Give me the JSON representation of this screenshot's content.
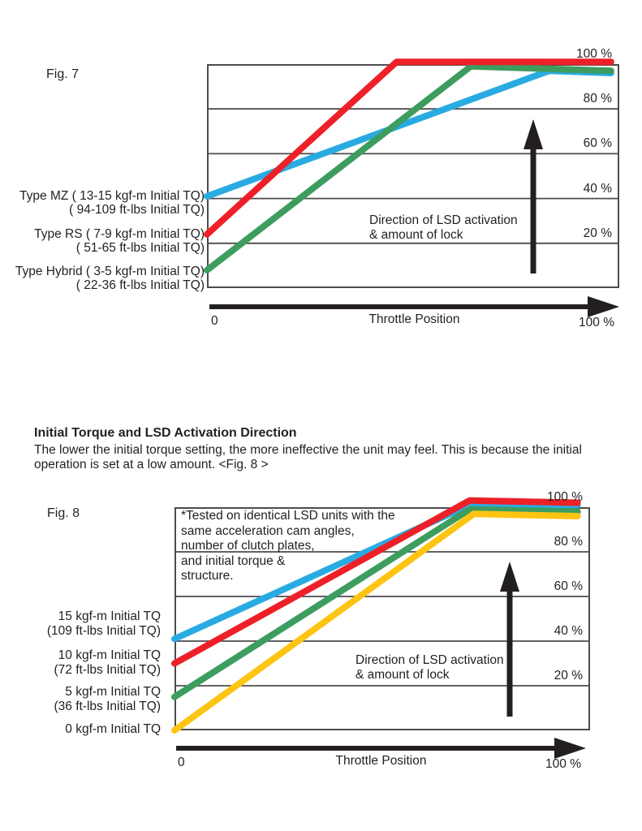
{
  "page": {
    "background": "#ffffff",
    "text_color": "#231f20",
    "frame_color": "#4c4c4e",
    "arrow_color": "#231f20"
  },
  "section": {
    "heading": "Initial Torque and LSD Activation Direction",
    "body": [
      "The lower the initial torque setting, the more ineffective the unit may feel. This is because the initial",
      "operation is set at a low amount. <Fig. 8 >"
    ]
  },
  "chart_data": [
    {
      "id": "fig7",
      "type": "line",
      "title": "Fig. 7",
      "xlabel": "Throttle Position",
      "x_min_label": "0",
      "x_max_label": "100 %",
      "xlim": [
        0,
        100
      ],
      "ylim": [
        0,
        100
      ],
      "y_ticks": [
        20,
        40,
        60,
        80,
        100
      ],
      "y_tick_suffix": " %",
      "grid": true,
      "legend_position": "left",
      "annotation": [
        "Direction of LSD activation",
        "& amount of lock"
      ],
      "series": [
        {
          "name": [
            "Type MZ ( 13-15 kgf-m Initial TQ)",
            "( 94-109 ft-lbs Initial TQ)"
          ],
          "color": "#29abe2",
          "points": [
            [
              0,
              41
            ],
            [
              83,
              97
            ],
            [
              98,
              96
            ]
          ]
        },
        {
          "name": [
            "Type RS ( 7-9 kgf-m Initial TQ)",
            "( 51-65 ft-lbs Initial TQ)"
          ],
          "color": "#ed2028",
          "points": [
            [
              0,
              24
            ],
            [
              46,
              101
            ],
            [
              98,
              101
            ]
          ]
        },
        {
          "name": [
            "Type Hybrid ( 3-5 kgf-m Initial TQ)",
            "( 22-36 ft-lbs Initial TQ)"
          ],
          "color": "#3c9d5f",
          "points": [
            [
              0,
              8
            ],
            [
              64,
              99
            ],
            [
              98,
              97
            ]
          ]
        }
      ],
      "draw_order": [
        0,
        2,
        1
      ]
    },
    {
      "id": "fig8",
      "type": "line",
      "title": "Fig. 8",
      "note": [
        "*Tested on identical LSD units with the",
        "same acceleration cam angles,",
        "number of clutch plates,",
        "and initial torque &",
        "structure."
      ],
      "xlabel": "Throttle Position",
      "x_min_label": "0",
      "x_max_label": "100 %",
      "xlim": [
        0,
        100
      ],
      "ylim": [
        0,
        100
      ],
      "y_ticks": [
        20,
        40,
        60,
        80,
        100
      ],
      "y_tick_suffix": " %",
      "grid": true,
      "legend_position": "left",
      "annotation": [
        "Direction of LSD activation",
        "& amount of lock"
      ],
      "series": [
        {
          "name": [
            "15 kgf-m Initial TQ",
            "(109 ft-lbs Initial TQ)"
          ],
          "color": "#29abe2",
          "points": [
            [
              0,
              41
            ],
            [
              71,
              101
            ],
            [
              97,
              101
            ]
          ]
        },
        {
          "name": [
            "10 kgf-m Initial TQ",
            "(72 ft-lbs Initial TQ)"
          ],
          "color": "#ed2028",
          "points": [
            [
              0,
              30
            ],
            [
              71,
              103
            ],
            [
              97,
              102
            ]
          ]
        },
        {
          "name": [
            "5 kgf-m Initial TQ",
            "(36 ft-lbs Initial TQ)"
          ],
          "color": "#3c9d5f",
          "points": [
            [
              0,
              15
            ],
            [
              71,
              99
            ],
            [
              97,
              98
            ]
          ]
        },
        {
          "name": [
            "0 kgf-m Initial TQ"
          ],
          "color": "#fdc413",
          "points": [
            [
              0,
              0
            ],
            [
              72,
              97
            ],
            [
              97,
              96
            ]
          ]
        }
      ],
      "draw_order": [
        0,
        1,
        2,
        3
      ]
    }
  ]
}
